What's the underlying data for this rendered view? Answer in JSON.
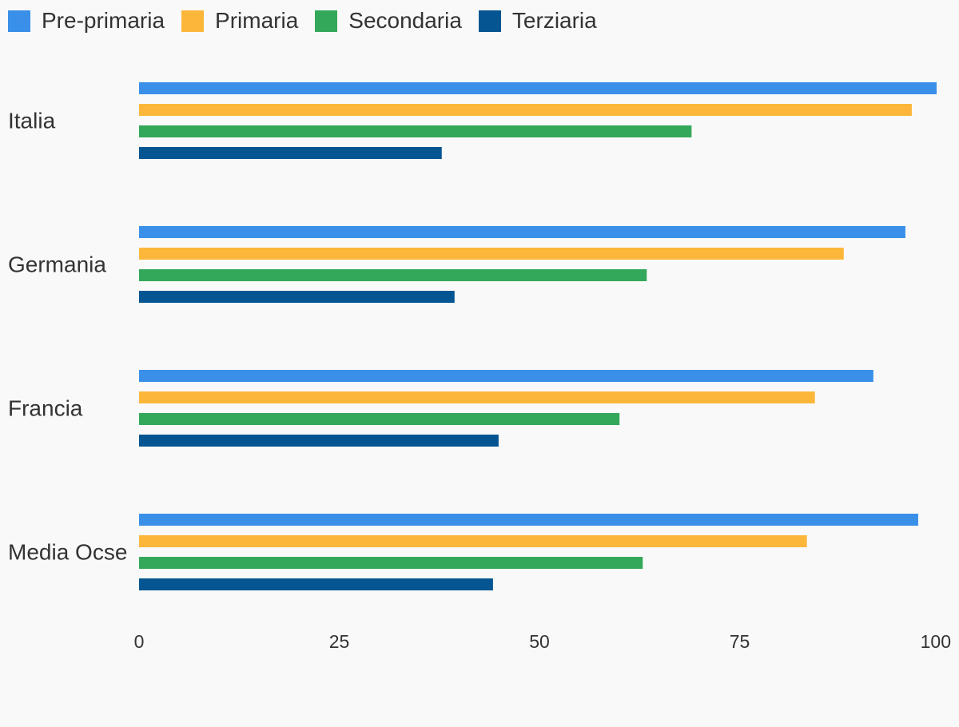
{
  "chart_data": {
    "type": "bar",
    "orientation": "horizontal",
    "categories": [
      "Italia",
      "Germania",
      "Francia",
      "Media Ocse"
    ],
    "series": [
      {
        "name": "Pre-primaria",
        "color": "#3a8fe8",
        "values": [
          99.6,
          95.7,
          91.7,
          97.3
        ]
      },
      {
        "name": "Primaria",
        "color": "#fcb73b",
        "values": [
          96.5,
          88.0,
          84.4,
          83.4
        ]
      },
      {
        "name": "Secondaria",
        "color": "#34a85a",
        "values": [
          69.0,
          63.4,
          60.0,
          62.9
        ]
      },
      {
        "name": "Terziaria",
        "color": "#045592",
        "values": [
          37.8,
          39.4,
          44.9,
          44.2
        ]
      }
    ],
    "x_ticks": [
      "0",
      "25",
      "50",
      "75",
      "100"
    ],
    "xlim": [
      0,
      100
    ],
    "grid": false,
    "legend": "top-left"
  }
}
